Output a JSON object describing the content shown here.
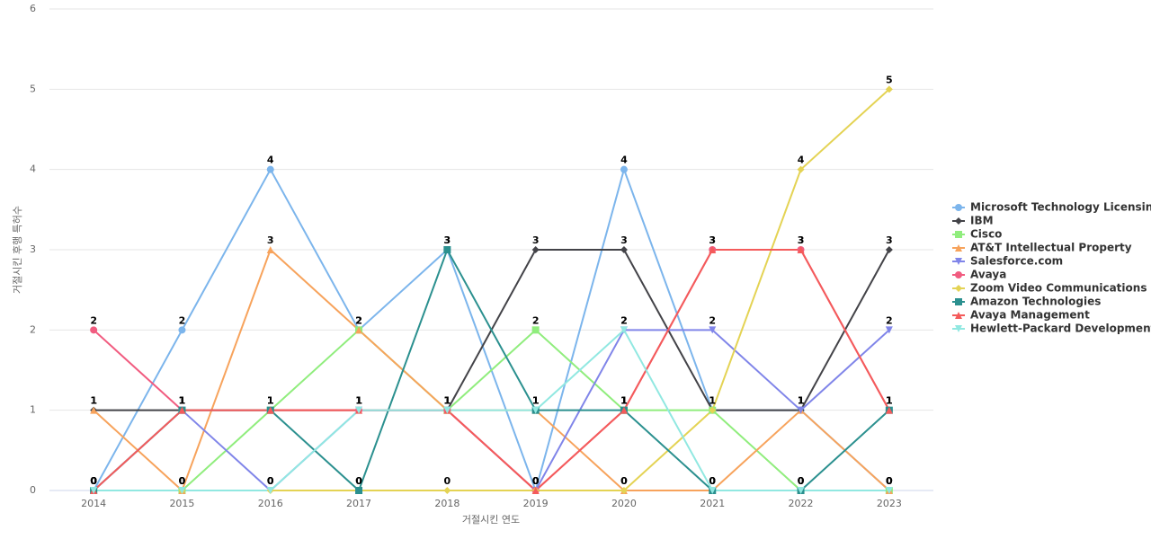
{
  "chart_data": {
    "type": "line",
    "x_label": "거절시킨 연도",
    "y_label": "거절시킨 후행 특허수",
    "categories": [
      "2014",
      "2015",
      "2016",
      "2017",
      "2018",
      "2019",
      "2020",
      "2021",
      "2022",
      "2023"
    ],
    "ylim": [
      0,
      6
    ],
    "yticks": [
      0,
      1,
      2,
      3,
      4,
      5,
      6
    ],
    "grid": true,
    "legend": "right",
    "data_labels": true,
    "series": [
      {
        "name": "Microsoft Technology Licensing",
        "color": "#7cb5ec",
        "symbol": "circle",
        "values": [
          0,
          2,
          4,
          2,
          3,
          0,
          4,
          1,
          1,
          0
        ]
      },
      {
        "name": "IBM",
        "color": "#434348",
        "symbol": "diamond",
        "values": [
          1,
          1,
          1,
          1,
          1,
          3,
          3,
          1,
          1,
          3
        ]
      },
      {
        "name": "Cisco",
        "color": "#90ed7d",
        "symbol": "square",
        "values": [
          0,
          0,
          1,
          2,
          1,
          2,
          1,
          1,
          0,
          0
        ]
      },
      {
        "name": "AT&T Intellectual Property",
        "color": "#f7a35c",
        "symbol": "triangle",
        "values": [
          1,
          0,
          3,
          2,
          1,
          1,
          0,
          0,
          1,
          0
        ]
      },
      {
        "name": "Salesforce.com",
        "color": "#8085e9",
        "symbol": "triangle-down",
        "values": [
          0,
          1,
          0,
          1,
          1,
          0,
          2,
          2,
          1,
          2
        ]
      },
      {
        "name": "Avaya",
        "color": "#f15c80",
        "symbol": "circle",
        "values": [
          2,
          1,
          1,
          1,
          1,
          0,
          1,
          3,
          3,
          1
        ]
      },
      {
        "name": "Zoom Video Communications",
        "color": "#e4d354",
        "symbol": "diamond",
        "values": [
          0,
          0,
          0,
          0,
          0,
          0,
          0,
          1,
          4,
          5
        ]
      },
      {
        "name": "Amazon Technologies",
        "color": "#2b908f",
        "symbol": "square",
        "values": [
          0,
          1,
          1,
          0,
          3,
          1,
          1,
          0,
          0,
          1
        ]
      },
      {
        "name": "Avaya Management",
        "color": "#f45b5b",
        "symbol": "triangle",
        "values": [
          0,
          1,
          1,
          1,
          1,
          0,
          1,
          3,
          3,
          1
        ]
      },
      {
        "name": "Hewlett-Packard Development",
        "color": "#91e8e1",
        "symbol": "triangle-down",
        "values": [
          0,
          0,
          0,
          1,
          1,
          1,
          2,
          0,
          0,
          0
        ]
      }
    ]
  }
}
